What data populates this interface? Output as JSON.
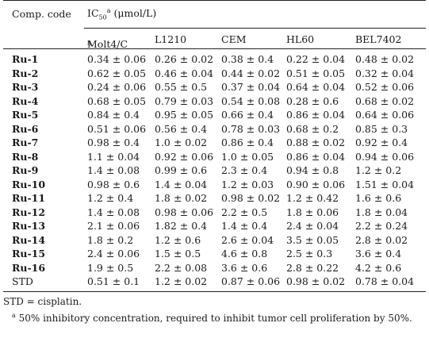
{
  "header": {
    "code_label": "Comp. code",
    "ic50_main": "IC",
    "ic50_sub": "50",
    "ic50_sup": "a",
    "ic50_unit": "(μmol/L)",
    "columns": [
      {
        "main": "Molt4/C",
        "sub": "8"
      },
      {
        "main": "L1210",
        "sub": ""
      },
      {
        "main": "CEM",
        "sub": ""
      },
      {
        "main": "HL60",
        "sub": ""
      },
      {
        "main": "BEL7402",
        "sub": ""
      }
    ]
  },
  "rows": [
    {
      "code": "Ru-1",
      "values": [
        "0.34 ± 0.06",
        "0.26 ± 0.02",
        "0.38 ± 0.4",
        "0.22 ± 0.04",
        "0.48 ± 0.02"
      ]
    },
    {
      "code": "Ru-2",
      "values": [
        "0.62 ± 0.05",
        "0.46 ± 0.04",
        "0.44 ± 0.02",
        "0.51 ± 0.05",
        "0.32 ± 0.04"
      ]
    },
    {
      "code": "Ru-3",
      "values": [
        "0.24 ± 0.06",
        "0.55 ± 0.5",
        "0.37 ± 0.04",
        "0.64 ± 0.04",
        "0.52 ± 0.06"
      ]
    },
    {
      "code": "Ru-4",
      "values": [
        "0.68 ± 0.05",
        "0.79 ± 0.03",
        "0.54 ± 0.08",
        "0.28 ± 0.6",
        "0.68 ± 0.02"
      ]
    },
    {
      "code": "Ru-5",
      "values": [
        "0.84 ± 0.4",
        "0.95 ± 0.05",
        "0.66 ± 0.4",
        "0.86 ± 0.04",
        "0.64 ± 0.06"
      ]
    },
    {
      "code": "Ru-6",
      "values": [
        "0.51 ± 0.06",
        "0.56 ± 0.4",
        "0.78 ± 0.03",
        "0.68 ± 0.2",
        "0.85 ± 0.3"
      ]
    },
    {
      "code": "Ru-7",
      "values": [
        "0.98 ± 0.4",
        "1.0 ± 0.02",
        "0.86 ± 0.4",
        "0.88 ± 0.02",
        "0.92 ± 0.4"
      ]
    },
    {
      "code": "Ru-8",
      "values": [
        "1.1 ± 0.04",
        "0.92 ± 0.06",
        "1.0 ± 0.05",
        "0.86 ± 0.04",
        "0.94 ± 0.06"
      ]
    },
    {
      "code": "Ru-9",
      "values": [
        "1.4 ± 0.08",
        "0.99 ± 0.6",
        "2.3 ± 0.4",
        "0.94 ± 0.8",
        "1.2 ± 0.2"
      ]
    },
    {
      "code": "Ru-10",
      "values": [
        "0.98 ± 0.6",
        "1.4 ± 0.04",
        "1.2 ± 0.03",
        "0.90 ± 0.06",
        "1.51 ± 0.04"
      ]
    },
    {
      "code": "Ru-11",
      "values": [
        "1.2 ± 0.4",
        "1.8 ± 0.02",
        "0.98 ± 0.02",
        "1.2 ± 0.42",
        "1.6 ± 0.6"
      ]
    },
    {
      "code": "Ru-12",
      "values": [
        "1.4 ± 0.08",
        "0.98 ± 0.06",
        "2.2 ± 0.5",
        "1.8 ± 0.06",
        "1.8 ± 0.04"
      ]
    },
    {
      "code": "Ru-13",
      "values": [
        "2.1 ± 0.06",
        "1.82 ± 0.4",
        "1.4 ± 0.4",
        "2.4 ± 0.04",
        "2.2 ± 0.24"
      ]
    },
    {
      "code": "Ru-14",
      "values": [
        "1.8 ± 0.2",
        "1.2 ± 0.6",
        "2.6 ± 0.04",
        "3.5 ± 0.05",
        "2.8 ± 0.02"
      ]
    },
    {
      "code": "Ru-15",
      "values": [
        "2.4 ± 0.06",
        "1.5 ± 0.5",
        "4.6 ± 0.8",
        "2.5 ± 0.3",
        "3.6 ± 0.4"
      ]
    },
    {
      "code": "Ru-16",
      "values": [
        "1.9 ± 0.5",
        "2.2 ± 0.08",
        "3.6 ± 0.6",
        "2.8 ± 0.22",
        "4.2 ± 0.6"
      ]
    },
    {
      "code": "STD",
      "values": [
        "0.51 ± 0.1",
        "1.2 ± 0.02",
        "0.87 ± 0.06",
        "0.98 ± 0.02",
        "0.78 ± 0.04"
      ],
      "plain": true
    }
  ],
  "notes": {
    "std_note": "STD = cisplatin.",
    "footnote_mark": "a",
    "footnote_text": " 50% inhibitory concentration, required to inhibit tumor cell proliferation by 50%."
  }
}
